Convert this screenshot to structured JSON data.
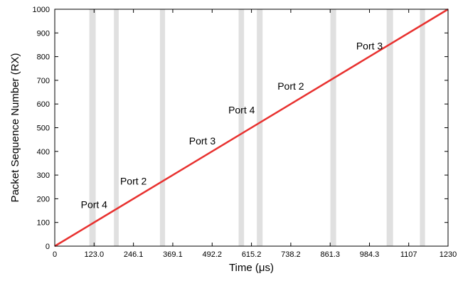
{
  "chart_data": {
    "type": "line",
    "xlabel": "Time (μs)",
    "ylabel": "Packet Sequence Number (RX)",
    "xlim": [
      0,
      1230
    ],
    "ylim": [
      0,
      1000
    ],
    "x_ticks": [
      0,
      123.0,
      246.1,
      369.1,
      492.2,
      615.2,
      738.2,
      861.3,
      984.3,
      1107,
      1230
    ],
    "x_tick_labels": [
      "0",
      "123.0",
      "246.1",
      "369.1",
      "492.2",
      "615.2",
      "738.2",
      "861.3",
      "984.3",
      "1107",
      "1230"
    ],
    "y_ticks": [
      0,
      100,
      200,
      300,
      400,
      500,
      600,
      700,
      800,
      900,
      1000
    ],
    "y_tick_labels": [
      "0",
      "100",
      "200",
      "300",
      "400",
      "500",
      "600",
      "700",
      "800",
      "900",
      "1000"
    ],
    "grid": false,
    "series": [
      {
        "color": "#e8312f",
        "x": [
          0,
          1230
        ],
        "y": [
          0,
          1000
        ]
      }
    ],
    "shaded_bands": [
      {
        "start": 108,
        "end": 128
      },
      {
        "start": 185,
        "end": 200
      },
      {
        "start": 329,
        "end": 345
      },
      {
        "start": 575,
        "end": 592
      },
      {
        "start": 632,
        "end": 650
      },
      {
        "start": 862,
        "end": 880
      },
      {
        "start": 1038,
        "end": 1058
      },
      {
        "start": 1142,
        "end": 1158
      }
    ],
    "band_color": "#e0e0e0",
    "annotations": [
      {
        "text": "Port 4",
        "x": 123.0,
        "y": 160
      },
      {
        "text": "Port 2",
        "x": 246.1,
        "y": 260
      },
      {
        "text": "Port 3",
        "x": 461.4,
        "y": 430
      },
      {
        "text": "Port 4",
        "x": 584.4,
        "y": 560
      },
      {
        "text": "Port 2",
        "x": 738.2,
        "y": 660
      },
      {
        "text": "Port 3",
        "x": 984.3,
        "y": 830
      }
    ]
  }
}
